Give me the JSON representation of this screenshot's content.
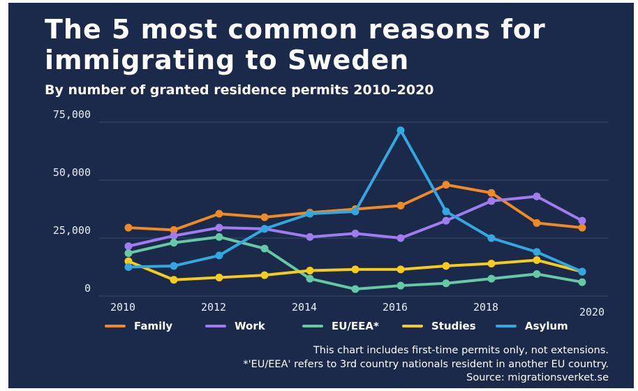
{
  "title": "The 5 most common reasons for immigrating to Sweden",
  "subtitle": "By number of granted residence permits 2010–2020",
  "notes": {
    "line1": "This chart includes first-time permits only, not extensions.",
    "line2": "*'EU/EEA' refers to 3rd country nationals resident in another EU country.",
    "line3": "Source: migrationsverket.se"
  },
  "chart_data": {
    "type": "line",
    "x": [
      2010,
      2011,
      2012,
      2013,
      2014,
      2015,
      2016,
      2017,
      2018,
      2019,
      2020
    ],
    "x_tick_labels": [
      "2010",
      "2012",
      "2014",
      "2016",
      "2018",
      "2020"
    ],
    "y_tick_labels": [
      "0",
      "25,000",
      "50,000",
      "75,000"
    ],
    "y_ticks": [
      0,
      25000,
      50000,
      75000
    ],
    "ylim": [
      0,
      75000
    ],
    "grid": "horizontal",
    "legend_position": "bottom",
    "series": [
      {
        "name": "Family",
        "color": "#ef8a25",
        "values": [
          29500,
          28500,
          35500,
          34000,
          36000,
          37500,
          39000,
          48000,
          44500,
          31500,
          29500
        ]
      },
      {
        "name": "Work",
        "color": "#a17bf0",
        "values": [
          21500,
          26000,
          29500,
          29000,
          25500,
          27000,
          25000,
          32500,
          41000,
          43000,
          32500
        ]
      },
      {
        "name": "EU/EEA*",
        "color": "#64c9a4",
        "values": [
          18500,
          23000,
          25500,
          20500,
          7500,
          3000,
          4500,
          5500,
          7500,
          9500,
          6000
        ]
      },
      {
        "name": "Studies",
        "color": "#f6cc1c",
        "values": [
          15000,
          7000,
          8000,
          9000,
          11000,
          11500,
          11500,
          13000,
          14000,
          15500,
          10500
        ]
      },
      {
        "name": "Asylum",
        "color": "#33a8e0",
        "values": [
          12500,
          13000,
          17500,
          29000,
          35500,
          36500,
          71500,
          36500,
          25000,
          19000,
          10500
        ]
      }
    ]
  }
}
